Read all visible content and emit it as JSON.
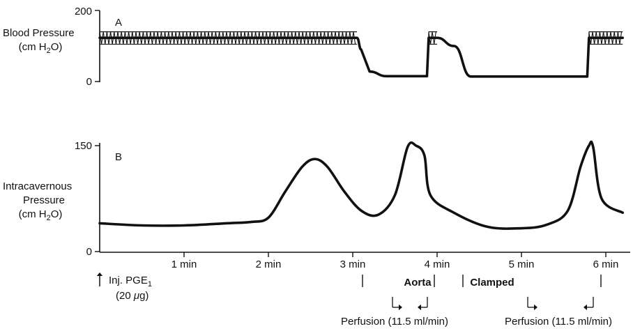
{
  "chart_data": [
    {
      "panel_label": "A",
      "type": "line",
      "ylabel_lines": [
        "Blood Pressure",
        "(cm H",
        "O)"
      ],
      "ylabel_subscript": "2",
      "y_ticks": [
        "200",
        "0"
      ],
      "ylim": [
        0,
        200
      ],
      "x_minutes": [
        0,
        3.05,
        3.1,
        3.2,
        3.4,
        3.88,
        3.9,
        4.0,
        4.2,
        4.4,
        5.78,
        5.8,
        6.2
      ],
      "values_mmH2O": [
        123,
        123,
        90,
        28,
        15,
        15,
        123,
        123,
        100,
        14,
        14,
        123,
        123
      ],
      "oscillation_band": [
        105,
        140
      ]
    },
    {
      "panel_label": "B",
      "type": "line",
      "ylabel_lines": [
        "Intracavernous",
        "Pressure",
        "(cm H",
        "O)"
      ],
      "ylabel_subscript": "2",
      "y_ticks": [
        "150",
        "0"
      ],
      "ylim": [
        0,
        150
      ],
      "x_ticks": [
        "1 min",
        "2 min",
        "3 min",
        "4 min",
        "5 min",
        "6 min"
      ],
      "x_minutes": [
        0.0,
        0.5,
        1.0,
        1.5,
        1.8,
        2.0,
        2.2,
        2.4,
        2.55,
        2.7,
        2.9,
        3.1,
        3.3,
        3.5,
        3.65,
        3.75,
        3.85,
        3.92,
        4.2,
        4.6,
        5.0,
        5.3,
        5.55,
        5.7,
        5.8,
        5.85,
        5.95,
        6.2
      ],
      "values_cmH2O": [
        40,
        37,
        37,
        40,
        42,
        48,
        85,
        120,
        131,
        120,
        85,
        58,
        52,
        80,
        148,
        150,
        136,
        80,
        55,
        35,
        33,
        38,
        58,
        120,
        150,
        148,
        75,
        55
      ]
    }
  ],
  "annotations": {
    "injection_line1": "Inj. PGE",
    "injection_subscript": "1",
    "injection_line2": "(20 ",
    "injection_mu": "μ",
    "injection_unit": "g)",
    "aorta": "Aorta",
    "clamped": "Clamped",
    "perfusion_1": "Perfusion (11.5 ml/min)",
    "perfusion_2": "Perfusion (11.5 ml/min)"
  }
}
